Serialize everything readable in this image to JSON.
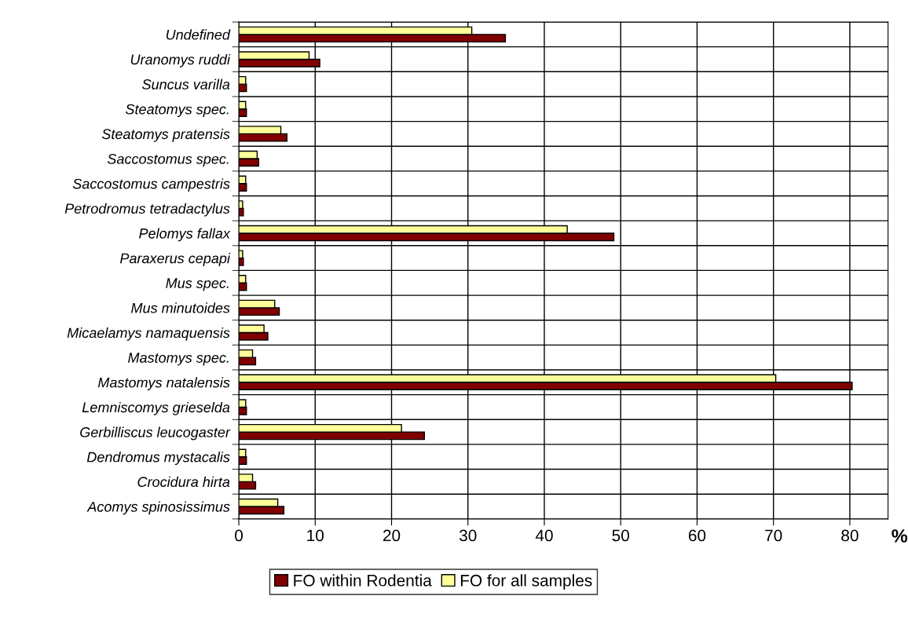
{
  "chart_data": {
    "type": "bar",
    "orientation": "horizontal",
    "xlabel": "%",
    "categories": [
      "Undefined",
      "Uranomys ruddi",
      "Suncus varilla",
      "Steatomys spec.",
      "Steatomys pratensis",
      "Saccostomus spec.",
      "Saccostomus campestris",
      "Petrodromus tetradactylus",
      "Pelomys fallax",
      "Paraxerus cepapi",
      "Mus spec.",
      "Mus minutoides",
      "Micaelamys namaquensis",
      "Mastomys spec.",
      "Mastomys natalensis",
      "Lemniscomys grieselda",
      "Gerbilliscus leucogaster",
      "Dendromus mystacalis",
      "Crocidura hirta",
      "Acomys spinosissimus"
    ],
    "series": [
      {
        "name": "FO within Rodentia",
        "color": "#800000",
        "values": [
          34.9,
          10.6,
          1.0,
          1.0,
          6.3,
          2.6,
          1.0,
          0.6,
          49.1,
          0.6,
          1.0,
          5.3,
          3.8,
          2.2,
          80.3,
          1.0,
          24.3,
          1.0,
          2.2,
          5.9
        ]
      },
      {
        "name": "FO for all samples",
        "color": "#ffff99",
        "values": [
          30.5,
          9.2,
          0.9,
          0.9,
          5.5,
          2.4,
          0.9,
          0.5,
          43.0,
          0.5,
          0.9,
          4.7,
          3.3,
          1.8,
          70.3,
          0.9,
          21.3,
          0.9,
          1.8,
          5.1
        ]
      }
    ],
    "xlim": [
      0,
      85
    ],
    "xticks": [
      0,
      10,
      20,
      30,
      40,
      50,
      60,
      70,
      80
    ],
    "grid": true,
    "legend": "bottom"
  }
}
